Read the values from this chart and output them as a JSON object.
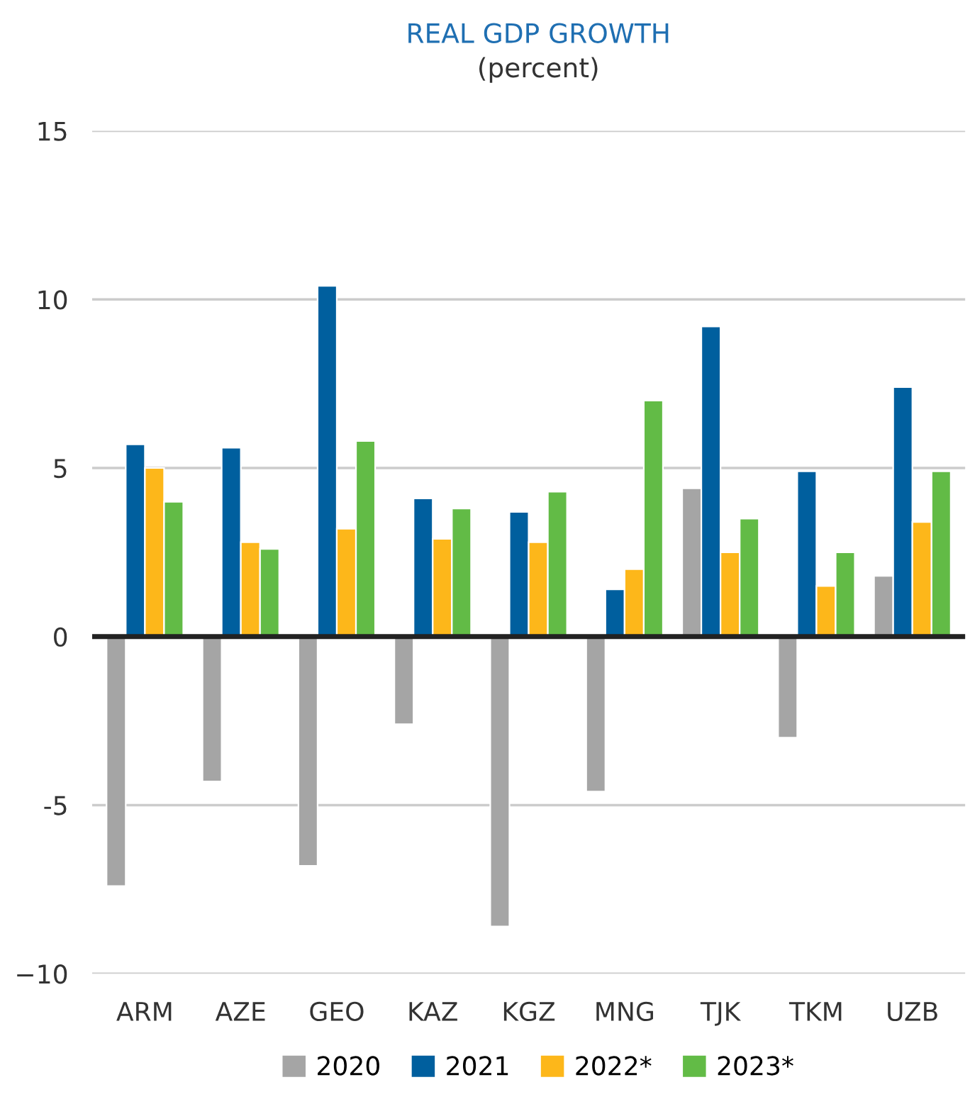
{
  "chart_data": {
    "type": "bar",
    "title": "REAL GDP GROWTH",
    "subtitle": "(percent)",
    "categories": [
      "ARM",
      "AZE",
      "GEO",
      "KAZ",
      "KGZ",
      "MNG",
      "TJK",
      "TKM",
      "UZB"
    ],
    "series": [
      {
        "name": "2020",
        "color": "#a5a5a5",
        "values": [
          -7.4,
          -4.3,
          -6.8,
          -2.6,
          -8.6,
          -4.6,
          4.4,
          -3.0,
          1.8
        ]
      },
      {
        "name": "2021",
        "color": "#005f9e",
        "values": [
          5.7,
          5.6,
          10.4,
          4.1,
          3.7,
          1.4,
          9.2,
          4.9,
          7.4
        ]
      },
      {
        "name": "2022*",
        "color": "#fdb71a",
        "values": [
          5.0,
          2.8,
          3.2,
          2.9,
          2.8,
          2.0,
          2.5,
          1.5,
          3.4
        ]
      },
      {
        "name": "2023*",
        "color": "#62bb46",
        "values": [
          4.0,
          2.6,
          5.8,
          3.8,
          4.3,
          7.0,
          3.5,
          2.5,
          4.9
        ]
      }
    ],
    "ylim": [
      -10,
      15
    ],
    "yticks": [
      15,
      10,
      5,
      0,
      -5,
      {
        "value": -10,
        "label": "−10"
      }
    ],
    "grid": "y",
    "legend": "bottom"
  }
}
